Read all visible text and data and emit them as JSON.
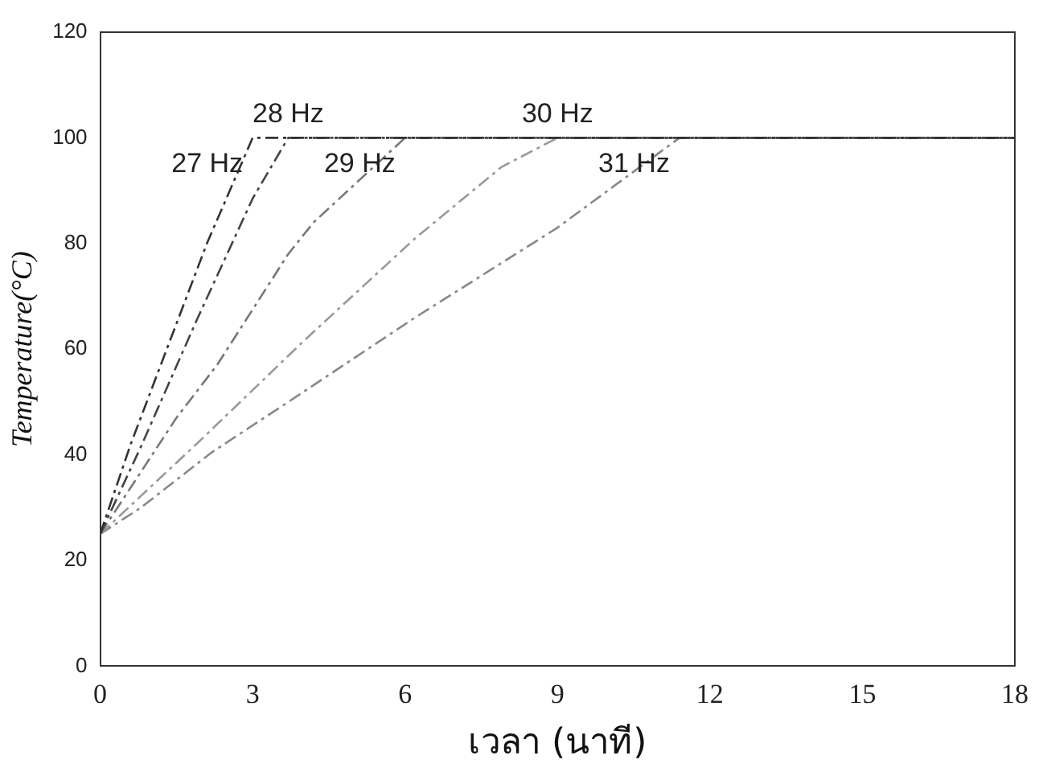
{
  "chart_data": {
    "type": "line",
    "xlabel": "เวลา (นาที)",
    "ylabel": "Temperature(°C)",
    "xlim": [
      0,
      18
    ],
    "xticks": [
      0,
      3,
      6,
      9,
      12,
      15,
      18
    ],
    "ylim": [
      0,
      120
    ],
    "yticks": [
      0,
      20,
      40,
      60,
      80,
      100,
      120
    ],
    "grid": false,
    "legend": false,
    "marker": "none",
    "line_style": "dashed",
    "series": [
      {
        "name": "27 Hz",
        "color": "#333333",
        "x": [
          0,
          0.6,
          2.1,
          3,
          18
        ],
        "values": [
          25,
          42,
          80,
          100,
          100
        ]
      },
      {
        "name": "28 Hz",
        "color": "#444444",
        "x": [
          0,
          0.8,
          1.9,
          3,
          3.7,
          18
        ],
        "values": [
          25,
          41.5,
          65.5,
          88.5,
          100,
          100
        ]
      },
      {
        "name": "29 Hz",
        "color": "#777777",
        "x": [
          0,
          1.5,
          2.3,
          3.7,
          4.2,
          6,
          18
        ],
        "values": [
          25,
          47,
          57,
          78,
          84,
          100,
          100
        ]
      },
      {
        "name": "30 Hz",
        "color": "#999999",
        "x": [
          0,
          2,
          4,
          6.2,
          7.9,
          9,
          18
        ],
        "values": [
          25,
          43,
          61.5,
          81,
          94.5,
          100,
          100
        ]
      },
      {
        "name": "31 Hz",
        "color": "#888888",
        "x": [
          0,
          0.8,
          2.2,
          3.7,
          6.2,
          9,
          11.4,
          18
        ],
        "values": [
          25,
          30,
          40.5,
          50,
          66,
          83,
          100,
          100
        ]
      }
    ]
  }
}
